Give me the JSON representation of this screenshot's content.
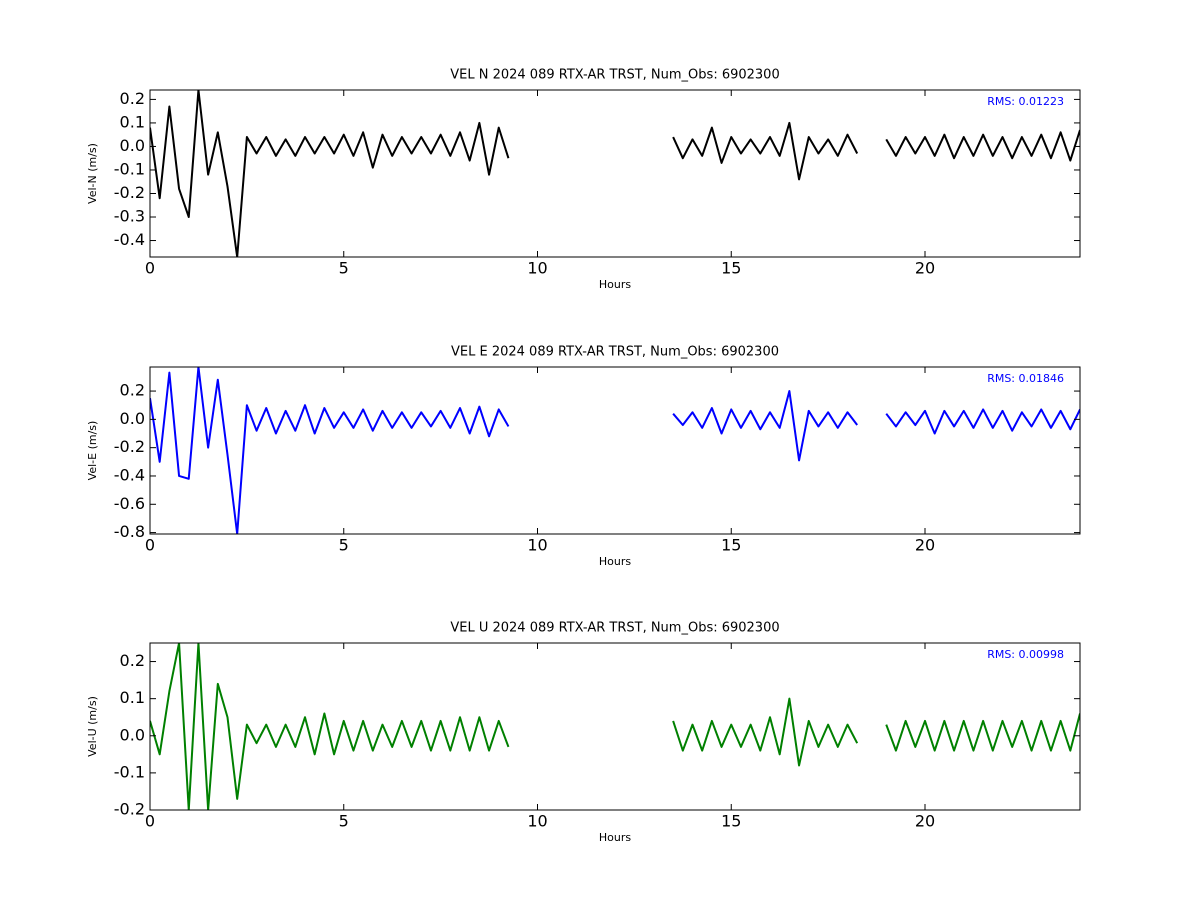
{
  "chart_data": [
    {
      "type": "line",
      "title": "VEL N 2024 089 RTX-AR  TRST, Num_Obs: 6902300",
      "xlabel": "Hours",
      "ylabel": "Vel-N (m/s)",
      "annotation": "RMS:  0.01223",
      "annotation_color": "#0000ff",
      "color": "#000000",
      "xlim": [
        0,
        24
      ],
      "xticks": [
        0,
        5,
        10,
        15,
        20
      ],
      "ylim": [
        -0.47,
        0.24
      ],
      "yticks": [
        -0.4,
        -0.3,
        -0.2,
        -0.1,
        {
          "value": 0,
          "label": "0.0"
        },
        0.1,
        0.2
      ],
      "x": [
        0,
        0.25,
        0.5,
        0.75,
        1,
        1.25,
        1.5,
        1.75,
        2,
        2.25,
        2.5,
        2.75,
        3,
        3.25,
        3.5,
        3.75,
        4,
        4.25,
        4.5,
        4.75,
        5,
        5.25,
        5.5,
        5.75,
        6,
        6.25,
        6.5,
        6.75,
        7,
        7.25,
        7.5,
        7.75,
        8,
        8.25,
        8.5,
        8.75,
        9,
        9.25,
        11,
        13.5,
        13.75,
        14,
        14.25,
        14.5,
        14.75,
        15,
        15.25,
        15.5,
        15.75,
        16,
        16.25,
        16.5,
        16.75,
        17,
        17.25,
        17.5,
        17.75,
        18,
        18.25,
        18.6,
        19,
        19.25,
        19.5,
        19.75,
        20,
        20.25,
        20.5,
        20.75,
        21,
        21.25,
        21.5,
        21.75,
        22,
        22.25,
        22.5,
        22.75,
        23,
        23.25,
        23.5,
        23.75,
        24
      ],
      "values": [
        0.08,
        -0.22,
        0.17,
        -0.18,
        -0.3,
        0.24,
        -0.12,
        0.06,
        -0.17,
        -0.47,
        0.04,
        -0.03,
        0.04,
        -0.04,
        0.03,
        -0.04,
        0.04,
        -0.03,
        0.04,
        -0.03,
        0.05,
        -0.04,
        0.06,
        -0.09,
        0.05,
        -0.04,
        0.04,
        -0.03,
        0.04,
        -0.03,
        0.05,
        -0.04,
        0.06,
        -0.06,
        0.1,
        -0.12,
        0.08,
        -0.05,
        null,
        0.04,
        -0.05,
        0.03,
        -0.04,
        0.08,
        -0.07,
        0.04,
        -0.03,
        0.03,
        -0.03,
        0.04,
        -0.04,
        0.1,
        -0.14,
        0.04,
        -0.03,
        0.03,
        -0.04,
        0.05,
        -0.03,
        null,
        0.03,
        -0.04,
        0.04,
        -0.03,
        0.04,
        -0.04,
        0.05,
        -0.05,
        0.04,
        -0.04,
        0.05,
        -0.04,
        0.04,
        -0.05,
        0.04,
        -0.04,
        0.05,
        -0.05,
        0.06,
        -0.06,
        0.07
      ]
    },
    {
      "type": "line",
      "title": "VEL E 2024 089 RTX-AR  TRST, Num_Obs: 6902300",
      "xlabel": "Hours",
      "ylabel": "Vel-E (m/s)",
      "annotation": "RMS:  0.01846",
      "annotation_color": "#0000ff",
      "color": "#0000ff",
      "xlim": [
        0,
        24
      ],
      "xticks": [
        0,
        5,
        10,
        15,
        20
      ],
      "ylim": [
        -0.81,
        0.37
      ],
      "yticks": [
        -0.8,
        -0.6,
        -0.4,
        -0.2,
        {
          "value": 0,
          "label": "0.0"
        },
        0.2
      ],
      "x": [
        0,
        0.25,
        0.5,
        0.75,
        1,
        1.25,
        1.5,
        1.75,
        2,
        2.25,
        2.5,
        2.75,
        3,
        3.25,
        3.5,
        3.75,
        4,
        4.25,
        4.5,
        4.75,
        5,
        5.25,
        5.5,
        5.75,
        6,
        6.25,
        6.5,
        6.75,
        7,
        7.25,
        7.5,
        7.75,
        8,
        8.25,
        8.5,
        8.75,
        9,
        9.25,
        11,
        13.5,
        13.75,
        14,
        14.25,
        14.5,
        14.75,
        15,
        15.25,
        15.5,
        15.75,
        16,
        16.25,
        16.5,
        16.75,
        17,
        17.25,
        17.5,
        17.75,
        18,
        18.25,
        18.6,
        19,
        19.25,
        19.5,
        19.75,
        20,
        20.25,
        20.5,
        20.75,
        21,
        21.25,
        21.5,
        21.75,
        22,
        22.25,
        22.5,
        22.75,
        23,
        23.25,
        23.5,
        23.75,
        24
      ],
      "values": [
        0.15,
        -0.3,
        0.33,
        -0.4,
        -0.42,
        0.37,
        -0.2,
        0.28,
        -0.25,
        -0.81,
        0.1,
        -0.08,
        0.08,
        -0.1,
        0.06,
        -0.08,
        0.1,
        -0.1,
        0.08,
        -0.06,
        0.05,
        -0.06,
        0.07,
        -0.08,
        0.06,
        -0.06,
        0.05,
        -0.06,
        0.05,
        -0.05,
        0.06,
        -0.06,
        0.08,
        -0.1,
        0.09,
        -0.12,
        0.07,
        -0.05,
        null,
        0.04,
        -0.04,
        0.05,
        -0.06,
        0.08,
        -0.1,
        0.07,
        -0.06,
        0.06,
        -0.07,
        0.05,
        -0.06,
        0.2,
        -0.29,
        0.06,
        -0.05,
        0.05,
        -0.06,
        0.05,
        -0.04,
        null,
        0.04,
        -0.05,
        0.05,
        -0.04,
        0.06,
        -0.1,
        0.06,
        -0.05,
        0.06,
        -0.06,
        0.07,
        -0.06,
        0.06,
        -0.08,
        0.05,
        -0.05,
        0.07,
        -0.06,
        0.06,
        -0.07,
        0.07
      ]
    },
    {
      "type": "line",
      "title": "VEL U 2024 089 RTX-AR  TRST, Num_Obs: 6902300",
      "xlabel": "Hours",
      "ylabel": "Vel-U (m/s)",
      "annotation": "RMS:  0.00998",
      "annotation_color": "#0000ff",
      "color": "#008000",
      "xlim": [
        0,
        24
      ],
      "xticks": [
        0,
        5,
        10,
        15,
        20
      ],
      "ylim": [
        -0.2,
        0.25
      ],
      "yticks": [
        -0.2,
        -0.1,
        {
          "value": 0,
          "label": "0.0"
        },
        0.1,
        0.2
      ],
      "x": [
        0,
        0.25,
        0.5,
        0.75,
        1,
        1.25,
        1.5,
        1.75,
        2,
        2.25,
        2.5,
        2.75,
        3,
        3.25,
        3.5,
        3.75,
        4,
        4.25,
        4.5,
        4.75,
        5,
        5.25,
        5.5,
        5.75,
        6,
        6.25,
        6.5,
        6.75,
        7,
        7.25,
        7.5,
        7.75,
        8,
        8.25,
        8.5,
        8.75,
        9,
        9.25,
        11,
        13.5,
        13.75,
        14,
        14.25,
        14.5,
        14.75,
        15,
        15.25,
        15.5,
        15.75,
        16,
        16.25,
        16.5,
        16.75,
        17,
        17.25,
        17.5,
        17.75,
        18,
        18.25,
        18.6,
        19,
        19.25,
        19.5,
        19.75,
        20,
        20.25,
        20.5,
        20.75,
        21,
        21.25,
        21.5,
        21.75,
        22,
        22.25,
        22.5,
        22.75,
        23,
        23.25,
        23.5,
        23.75,
        24
      ],
      "values": [
        0.04,
        -0.05,
        0.12,
        0.25,
        -0.2,
        0.25,
        -0.2,
        0.14,
        0.05,
        -0.17,
        0.03,
        -0.02,
        0.03,
        -0.03,
        0.03,
        -0.03,
        0.05,
        -0.05,
        0.06,
        -0.05,
        0.04,
        -0.04,
        0.04,
        -0.04,
        0.03,
        -0.03,
        0.04,
        -0.03,
        0.04,
        -0.04,
        0.04,
        -0.04,
        0.05,
        -0.04,
        0.05,
        -0.04,
        0.04,
        -0.03,
        null,
        0.04,
        -0.04,
        0.03,
        -0.04,
        0.04,
        -0.03,
        0.03,
        -0.03,
        0.03,
        -0.04,
        0.05,
        -0.05,
        0.1,
        -0.08,
        0.04,
        -0.03,
        0.03,
        -0.03,
        0.03,
        -0.02,
        null,
        0.03,
        -0.04,
        0.04,
        -0.03,
        0.04,
        -0.04,
        0.04,
        -0.04,
        0.04,
        -0.04,
        0.04,
        -0.04,
        0.04,
        -0.03,
        0.04,
        -0.04,
        0.04,
        -0.04,
        0.04,
        -0.04,
        0.06
      ]
    }
  ]
}
